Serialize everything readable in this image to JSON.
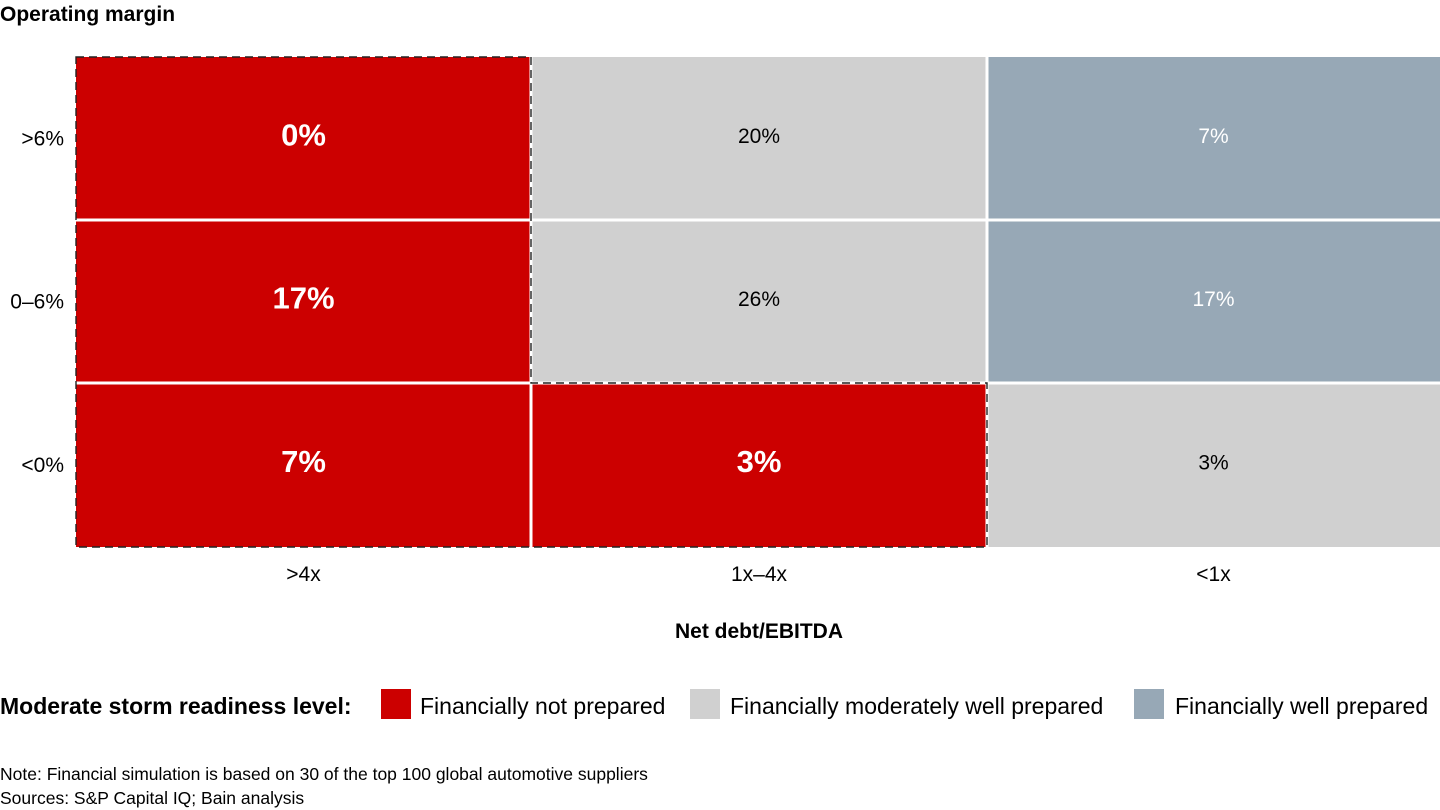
{
  "chart_data": {
    "type": "heatmap",
    "ylabel": "Operating margin",
    "xlabel": "Net debt/EBITDA",
    "x_categories": [
      ">4x",
      "1x–4x",
      "<1x"
    ],
    "y_categories": [
      ">6%",
      "0–6%",
      "<0%"
    ],
    "cells": [
      {
        "x": ">4x",
        "y": ">6%",
        "value": 0,
        "label": "0%",
        "level": "not_prepared"
      },
      {
        "x": "1x–4x",
        "y": ">6%",
        "value": 20,
        "label": "20%",
        "level": "moderate"
      },
      {
        "x": "<1x",
        "y": ">6%",
        "value": 7,
        "label": "7%",
        "level": "well"
      },
      {
        "x": ">4x",
        "y": "0–6%",
        "value": 17,
        "label": "17%",
        "level": "not_prepared"
      },
      {
        "x": "1x–4x",
        "y": "0–6%",
        "value": 26,
        "label": "26%",
        "level": "moderate"
      },
      {
        "x": "<1x",
        "y": "0–6%",
        "value": 17,
        "label": "17%",
        "level": "well"
      },
      {
        "x": ">4x",
        "y": "<0%",
        "value": 7,
        "label": "7%",
        "level": "not_prepared"
      },
      {
        "x": "1x–4x",
        "y": "<0%",
        "value": 3,
        "label": "3%",
        "level": "not_prepared"
      },
      {
        "x": "<1x",
        "y": "<0%",
        "value": 3,
        "label": "3%",
        "level": "moderate"
      }
    ],
    "levels": {
      "not_prepared": {
        "color": "#cc0000",
        "text_color": "#ffffff",
        "bold": true
      },
      "moderate": {
        "color": "#d0d0d0",
        "text_color": "#000000",
        "bold": false
      },
      "well": {
        "color": "#97a8b6",
        "text_color": "#ffffff",
        "bold": false
      }
    },
    "legend": {
      "title": "Moderate storm readiness level:",
      "placement": "bottom",
      "items": [
        {
          "label": "Financially not prepared",
          "level": "not_prepared",
          "color": "#cc0000"
        },
        {
          "label": "Financially moderately well prepared",
          "level": "moderate",
          "color": "#d0d0d0"
        },
        {
          "label": "Financially well prepared",
          "level": "well",
          "color": "#97a8b6"
        }
      ]
    },
    "highlight": "dashed outline around the financially not prepared cells"
  },
  "notes": [
    "Note: Financial simulation is based on 30 of the top 100 global automotive suppliers",
    "Sources: S&P Capital IQ; Bain analysis"
  ]
}
